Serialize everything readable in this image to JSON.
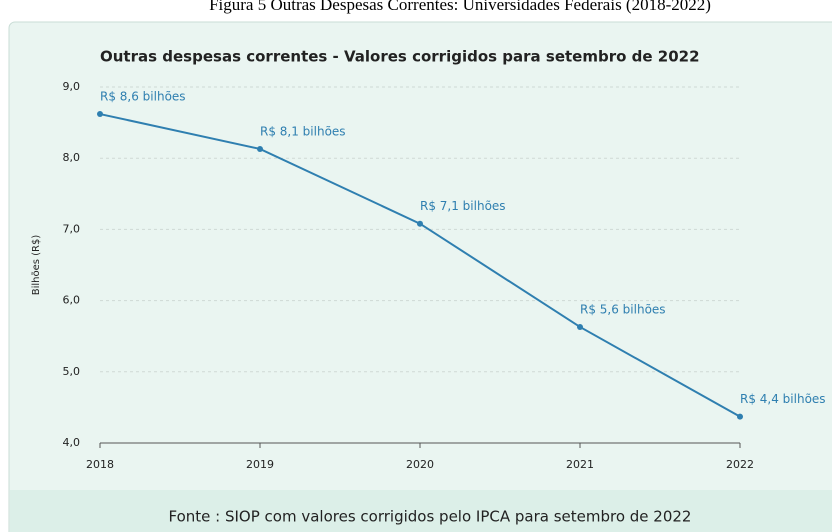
{
  "caption": "Figura 5 Outras Despesas Correntes: Universidades Federais (2018-2022)",
  "chart_data": {
    "type": "line",
    "title": "Outras despesas correntes - Valores corrigidos para setembro de 2022",
    "y_label": "Bilhões (R$)",
    "categories": [
      "2018",
      "2019",
      "2020",
      "2021",
      "2022"
    ],
    "series": [
      {
        "name": "Outras despesas correntes",
        "color": "#2f7fb0",
        "values": [
          8.62,
          8.13,
          7.08,
          5.63,
          4.37
        ],
        "value_labels": [
          "R$ 8,6 bilhões",
          "R$ 8,1 bilhões",
          "R$ 7,1 bilhões",
          "R$ 5,6 bilhões",
          "R$ 4,4 bilhões"
        ]
      }
    ],
    "ylim": [
      4,
      9
    ],
    "yticks": [
      {
        "value": 4,
        "label": "4,0"
      },
      {
        "value": 5,
        "label": "5,0"
      },
      {
        "value": 6,
        "label": "6,0"
      },
      {
        "value": 7,
        "label": "7,0"
      },
      {
        "value": 8,
        "label": "8,0"
      },
      {
        "value": 9,
        "label": "9,0"
      }
    ],
    "grid": true,
    "source": "Fonte : SIOP com valores corrigidos pelo IPCA para setembro de 2022"
  }
}
